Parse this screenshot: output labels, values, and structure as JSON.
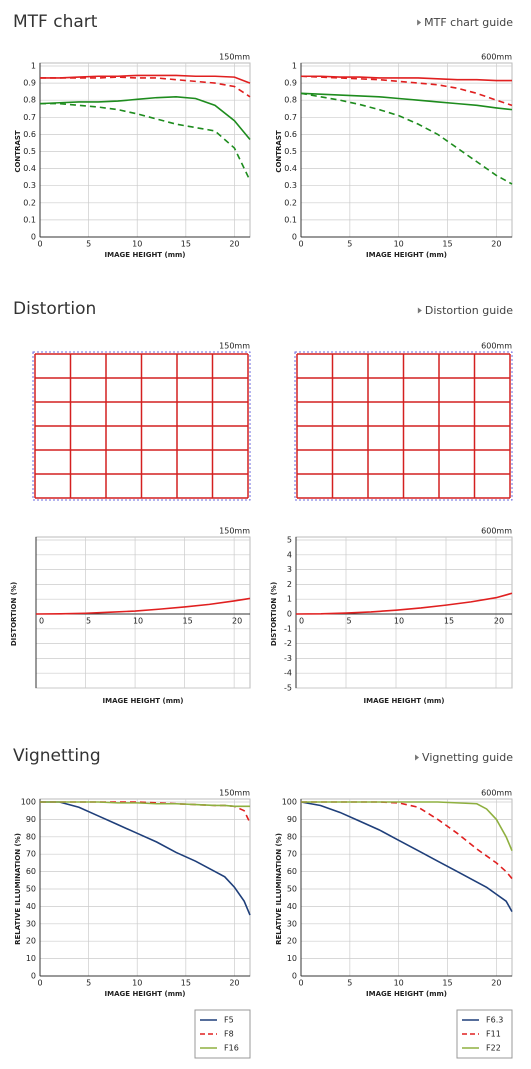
{
  "sections": [
    {
      "title": "MTF chart",
      "link": "MTF chart guide"
    },
    {
      "title": "Distortion",
      "link": "Distortion guide"
    },
    {
      "title": "Vignetting",
      "link": "Vignetting guide"
    }
  ],
  "distortion_grids": [
    {
      "label": "150mm"
    },
    {
      "label": "600mm"
    }
  ],
  "chart_data": [
    {
      "type": "line",
      "subtitle": "150mm",
      "xlabel": "IMAGE HEIGHT (mm)",
      "ylabel": "CONTRAST",
      "x": [
        0,
        2,
        4,
        6,
        8,
        10,
        12,
        14,
        16,
        18,
        20,
        21.6
      ],
      "xlim": [
        0,
        21.6
      ],
      "xticks": [
        0,
        5,
        10,
        15,
        20
      ],
      "ylim": [
        0,
        1
      ],
      "yticks": [
        0,
        0.1,
        0.2,
        0.3,
        0.4,
        0.5,
        0.6,
        0.7,
        0.8,
        0.9,
        1
      ],
      "grid": true,
      "series": [
        {
          "color": "#e02020",
          "style": "solid",
          "values": [
            0.93,
            0.93,
            0.935,
            0.94,
            0.94,
            0.945,
            0.945,
            0.945,
            0.94,
            0.94,
            0.935,
            0.9
          ]
        },
        {
          "color": "#e02020",
          "style": "dashed",
          "values": [
            0.93,
            0.93,
            0.93,
            0.93,
            0.935,
            0.93,
            0.93,
            0.92,
            0.91,
            0.9,
            0.88,
            0.82
          ]
        },
        {
          "color": "#1e8c1e",
          "style": "solid",
          "values": [
            0.78,
            0.785,
            0.79,
            0.79,
            0.795,
            0.805,
            0.815,
            0.82,
            0.81,
            0.77,
            0.68,
            0.57
          ]
        },
        {
          "color": "#1e8c1e",
          "style": "dashed",
          "values": [
            0.78,
            0.78,
            0.77,
            0.76,
            0.745,
            0.72,
            0.69,
            0.66,
            0.64,
            0.62,
            0.52,
            0.33
          ]
        }
      ]
    },
    {
      "type": "line",
      "subtitle": "600mm",
      "xlabel": "IMAGE HEIGHT (mm)",
      "ylabel": "CONTRAST",
      "x": [
        0,
        2,
        4,
        6,
        8,
        10,
        12,
        14,
        16,
        18,
        20,
        21.6
      ],
      "xlim": [
        0,
        21.6
      ],
      "xticks": [
        0,
        5,
        10,
        15,
        20
      ],
      "ylim": [
        0,
        1
      ],
      "yticks": [
        0,
        0.1,
        0.2,
        0.3,
        0.4,
        0.5,
        0.6,
        0.7,
        0.8,
        0.9,
        1
      ],
      "grid": true,
      "series": [
        {
          "color": "#e02020",
          "style": "solid",
          "values": [
            0.94,
            0.94,
            0.935,
            0.935,
            0.93,
            0.93,
            0.93,
            0.925,
            0.92,
            0.92,
            0.915,
            0.915
          ]
        },
        {
          "color": "#e02020",
          "style": "dashed",
          "values": [
            0.94,
            0.935,
            0.93,
            0.925,
            0.92,
            0.91,
            0.9,
            0.89,
            0.87,
            0.84,
            0.8,
            0.77
          ]
        },
        {
          "color": "#1e8c1e",
          "style": "solid",
          "values": [
            0.84,
            0.835,
            0.83,
            0.825,
            0.82,
            0.81,
            0.8,
            0.79,
            0.78,
            0.77,
            0.755,
            0.745
          ]
        },
        {
          "color": "#1e8c1e",
          "style": "dashed",
          "values": [
            0.84,
            0.82,
            0.8,
            0.775,
            0.745,
            0.71,
            0.66,
            0.6,
            0.52,
            0.44,
            0.36,
            0.31
          ]
        }
      ]
    },
    {
      "type": "line",
      "subtitle": "150mm",
      "xlabel": "IMAGE HEIGHT (mm)",
      "ylabel": "DISTORTION (%)",
      "x": [
        0,
        2.5,
        5,
        7.5,
        10,
        12.5,
        15,
        17.5,
        20,
        21.6
      ],
      "xlim": [
        0,
        21.6
      ],
      "xticks": [
        0,
        5,
        10,
        15,
        20
      ],
      "ylim": [
        -5,
        5
      ],
      "yticks": [
        -5,
        -4,
        -3,
        -2,
        -1,
        0,
        1,
        2,
        3,
        4,
        5
      ],
      "ytick_labels": false,
      "grid": true,
      "series": [
        {
          "color": "#e02020",
          "style": "solid",
          "values": [
            0,
            0.01,
            0.05,
            0.12,
            0.2,
            0.33,
            0.48,
            0.65,
            0.88,
            1.05
          ]
        }
      ]
    },
    {
      "type": "line",
      "subtitle": "600mm",
      "xlabel": "IMAGE HEIGHT (mm)",
      "ylabel": "DISTORTION (%)",
      "x": [
        0,
        2.5,
        5,
        7.5,
        10,
        12.5,
        15,
        17.5,
        20,
        21.6
      ],
      "xlim": [
        0,
        21.6
      ],
      "xticks": [
        0,
        5,
        10,
        15,
        20
      ],
      "ylim": [
        -5,
        5
      ],
      "yticks": [
        -5,
        -4,
        -3,
        -2,
        -1,
        0,
        1,
        2,
        3,
        4,
        5
      ],
      "grid": true,
      "series": [
        {
          "color": "#e02020",
          "style": "solid",
          "values": [
            0,
            0.01,
            0.06,
            0.14,
            0.26,
            0.41,
            0.6,
            0.82,
            1.1,
            1.4
          ]
        }
      ]
    },
    {
      "type": "line",
      "subtitle": "150mm",
      "xlabel": "IMAGE HEIGHT (mm)",
      "ylabel": "RELATIVE ILLUMINATION (%)",
      "x": [
        0,
        2,
        4,
        6,
        8,
        10,
        12,
        14,
        16,
        18,
        19,
        20,
        21,
        21.6
      ],
      "xlim": [
        0,
        21.6
      ],
      "xticks": [
        0,
        5,
        10,
        15,
        20
      ],
      "ylim": [
        0,
        100
      ],
      "yticks": [
        0,
        10,
        20,
        30,
        40,
        50,
        60,
        70,
        80,
        90,
        100
      ],
      "grid": true,
      "series": [
        {
          "name": "F5",
          "color": "#1f3f7a",
          "style": "solid",
          "values": [
            100,
            100,
            97,
            92,
            87,
            82,
            77,
            71,
            66,
            60,
            57,
            51,
            43,
            35
          ]
        },
        {
          "name": "F8",
          "color": "#e02020",
          "style": "dashed",
          "values": [
            100,
            100,
            100,
            100,
            100,
            100,
            99.5,
            99,
            98.5,
            98,
            98,
            97.5,
            95,
            88
          ]
        },
        {
          "name": "F16",
          "color": "#8fb040",
          "style": "solid",
          "values": [
            100,
            100,
            100,
            100,
            99.5,
            99.5,
            99,
            99,
            98.5,
            98,
            98,
            97.5,
            97.5,
            97.5
          ]
        }
      ]
    },
    {
      "type": "line",
      "subtitle": "600mm",
      "xlabel": "IMAGE HEIGHT (mm)",
      "ylabel": "RELATIVE ILLUMINATION (%)",
      "x": [
        0,
        2,
        4,
        6,
        8,
        10,
        12,
        14,
        16,
        18,
        19,
        20,
        21,
        21.6
      ],
      "xlim": [
        0,
        21.6
      ],
      "xticks": [
        0,
        5,
        10,
        15,
        20
      ],
      "ylim": [
        0,
        100
      ],
      "yticks": [
        0,
        10,
        20,
        30,
        40,
        50,
        60,
        70,
        80,
        90,
        100
      ],
      "grid": true,
      "series": [
        {
          "name": "F6.3",
          "color": "#1f3f7a",
          "style": "solid",
          "values": [
            100,
            98,
            94,
            89,
            84,
            78,
            72,
            66,
            60,
            54,
            51,
            47,
            43,
            37
          ]
        },
        {
          "name": "F11",
          "color": "#e02020",
          "style": "dashed",
          "values": [
            100,
            100,
            100,
            100,
            100,
            99.5,
            97,
            90,
            82,
            73,
            69,
            65,
            60,
            56
          ]
        },
        {
          "name": "F22",
          "color": "#8fb040",
          "style": "solid",
          "values": [
            100,
            100,
            100,
            100,
            100,
            100,
            100,
            100,
            99.5,
            99,
            96,
            90,
            80,
            72
          ]
        }
      ]
    }
  ]
}
